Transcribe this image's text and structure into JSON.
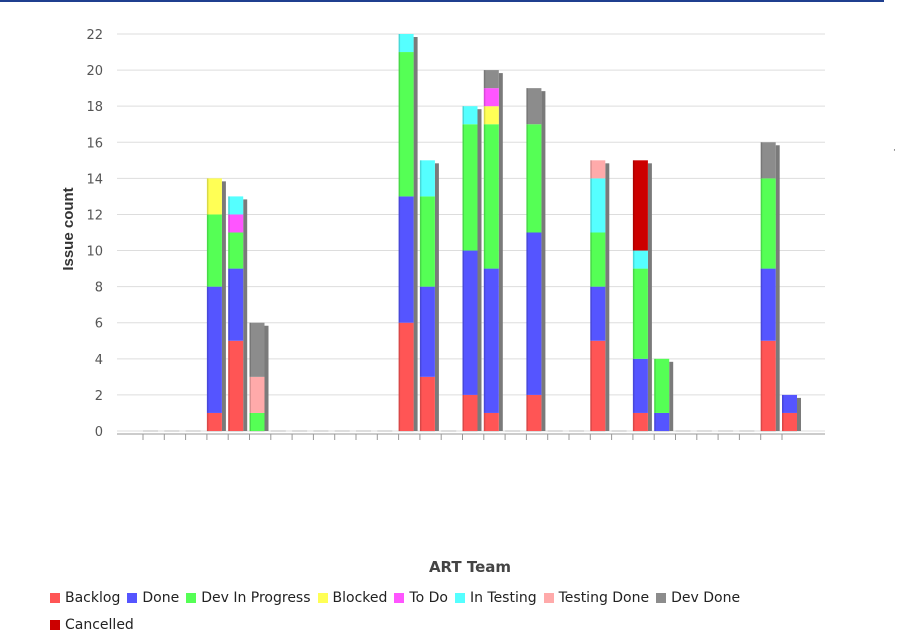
{
  "chart_data": {
    "type": "bar",
    "stacked": true,
    "xlabel": "ART Team",
    "ylabel": "Issue count",
    "ylim": [
      0,
      22
    ],
    "yticks": [
      0,
      2,
      4,
      6,
      8,
      10,
      12,
      14,
      16,
      18,
      20,
      22
    ],
    "grid": true,
    "legend_placement": "bottom",
    "series": [
      {
        "name": "Backlog",
        "color": "#ff5555"
      },
      {
        "name": "Done",
        "color": "#5555ff"
      },
      {
        "name": "Dev In Progress",
        "color": "#55ff55"
      },
      {
        "name": "Blocked",
        "color": "#ffff55"
      },
      {
        "name": "To Do",
        "color": "#ff55ff"
      },
      {
        "name": "In Testing",
        "color": "#55ffff"
      },
      {
        "name": "Testing Done",
        "color": "#ffaaaa"
      },
      {
        "name": "Dev Done",
        "color": "#8c8c8c"
      },
      {
        "name": "Cancelled",
        "color": "#cc0000"
      }
    ],
    "bars": [
      [],
      [],
      [],
      [
        [
          "Backlog",
          1
        ],
        [
          "Done",
          7
        ],
        [
          "Dev In Progress",
          4
        ],
        [
          "Blocked",
          2
        ]
      ],
      [
        [
          "Backlog",
          5
        ],
        [
          "Done",
          4
        ],
        [
          "Dev In Progress",
          2
        ],
        [
          "To Do",
          1
        ],
        [
          "In Testing",
          1
        ]
      ],
      [
        [
          "Dev In Progress",
          1
        ],
        [
          "Testing Done",
          2
        ],
        [
          "Dev Done",
          3
        ]
      ],
      [],
      [],
      [],
      [],
      [],
      [],
      [
        [
          "Backlog",
          6
        ],
        [
          "Done",
          7
        ],
        [
          "Dev In Progress",
          8
        ],
        [
          "In Testing",
          1
        ]
      ],
      [
        [
          "Backlog",
          3
        ],
        [
          "Done",
          5
        ],
        [
          "Dev In Progress",
          5
        ],
        [
          "In Testing",
          2
        ]
      ],
      [],
      [
        [
          "Backlog",
          2
        ],
        [
          "Done",
          8
        ],
        [
          "Dev In Progress",
          7
        ],
        [
          "In Testing",
          1
        ]
      ],
      [
        [
          "Backlog",
          1
        ],
        [
          "Done",
          8
        ],
        [
          "Dev In Progress",
          8
        ],
        [
          "Blocked",
          1
        ],
        [
          "To Do",
          1
        ],
        [
          "Dev Done",
          1
        ]
      ],
      [],
      [
        [
          "Backlog",
          2
        ],
        [
          "Done",
          9
        ],
        [
          "Dev In Progress",
          6
        ],
        [
          "Dev Done",
          2
        ]
      ],
      [],
      [],
      [
        [
          "Backlog",
          5
        ],
        [
          "Done",
          3
        ],
        [
          "Dev In Progress",
          3
        ],
        [
          "In Testing",
          3
        ],
        [
          "Testing Done",
          1
        ]
      ],
      [],
      [
        [
          "Backlog",
          1
        ],
        [
          "Done",
          3
        ],
        [
          "Dev In Progress",
          5
        ],
        [
          "In Testing",
          1
        ],
        [
          "Cancelled",
          5
        ]
      ],
      [
        [
          "Done",
          1
        ],
        [
          "Dev In Progress",
          3
        ]
      ],
      [],
      [],
      [],
      [],
      [
        [
          "Backlog",
          5
        ],
        [
          "Done",
          4
        ],
        [
          "Dev In Progress",
          5
        ],
        [
          "Dev Done",
          2
        ]
      ],
      [
        [
          "Backlog",
          1
        ],
        [
          "Done",
          1
        ]
      ]
    ]
  }
}
